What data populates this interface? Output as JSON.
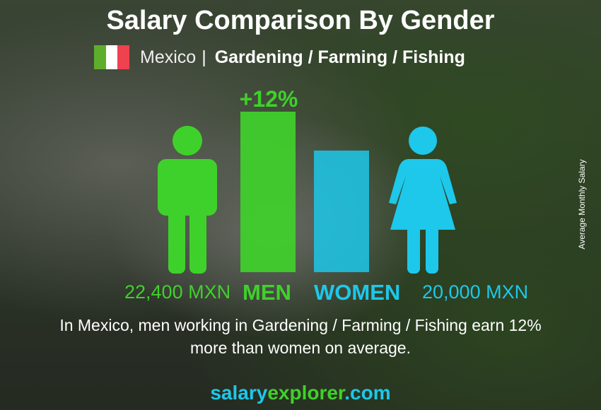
{
  "title": "Salary Comparison By Gender",
  "country": "Mexico",
  "separator": "|",
  "job": "Gardening / Farming / Fishing",
  "difference": "+12%",
  "description_line1": "In Mexico, men working in Gardening / Farming / Fishing earn 12%",
  "description_line2": "more than women on average.",
  "site": {
    "part1": "salary",
    "part2": "explorer",
    "part3": ".com"
  },
  "colors": {
    "men": "#3fd12b",
    "women": "#1dc8ea",
    "flag": [
      "#2e8b1f",
      "#ffffff",
      "#f0414e"
    ]
  },
  "icons": [
    "mexico-flag-icon",
    "man-icon",
    "woman-icon"
  ],
  "chart_data": {
    "type": "bar",
    "categories": [
      "MEN",
      "WOMEN"
    ],
    "values": [
      22400,
      20000
    ],
    "value_labels": [
      "22,400 MXN",
      "20,000 MXN"
    ],
    "ylabel": "Average Monthly Salary",
    "unit": "MXN"
  }
}
